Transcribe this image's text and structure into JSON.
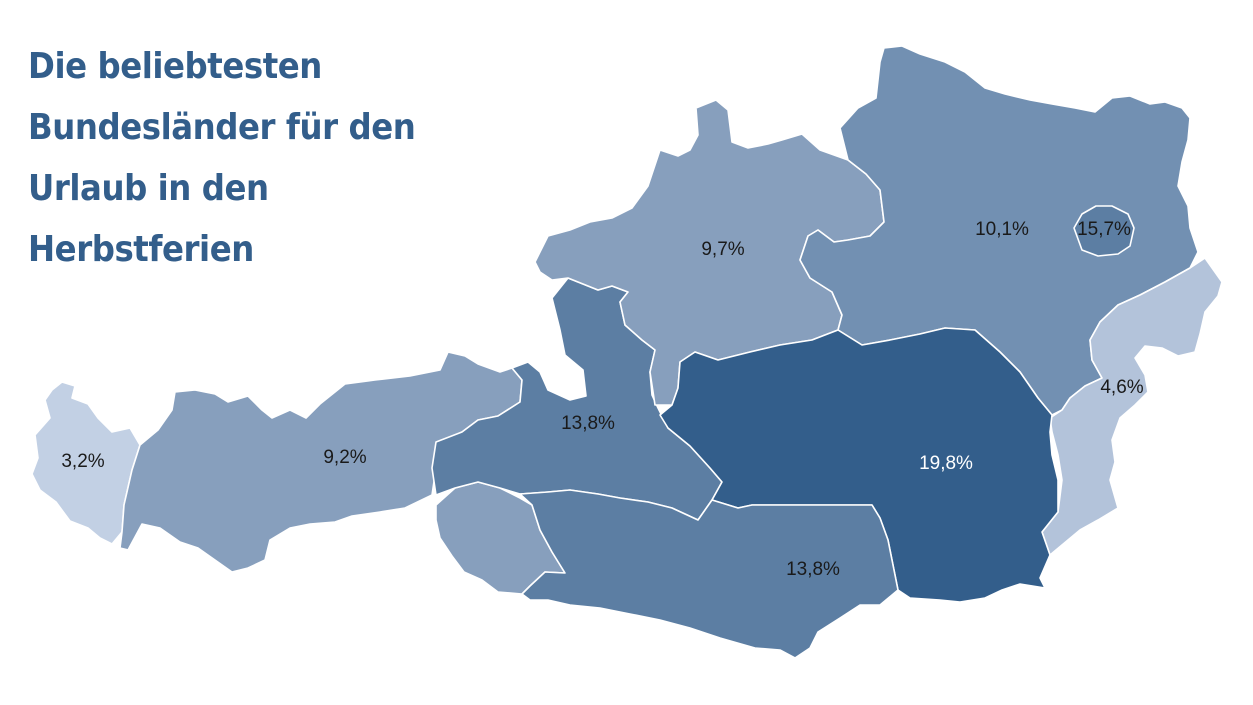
{
  "title": {
    "lines": [
      "Die beliebtesten",
      "Bundesländer für den",
      "Urlaub in den",
      "Herbstferien"
    ],
    "color": "#335e8b"
  },
  "colors": {
    "title": "#335e8b",
    "label_dark": "#1a1a1a",
    "label_light": "#ffffff",
    "region_border": "#ffffff",
    "background": "#ffffff"
  },
  "regions": [
    {
      "id": "vorarlberg",
      "value": "3,2%",
      "fill": "#c2d0e4"
    },
    {
      "id": "tirol",
      "value": "9,2%",
      "fill": "#879fbd"
    },
    {
      "id": "osttirol",
      "value": "",
      "fill": "#879fbd"
    },
    {
      "id": "salzburg",
      "value": "13,8%",
      "fill": "#5c7ea3"
    },
    {
      "id": "oberoesterreich",
      "value": "9,7%",
      "fill": "#879fbd"
    },
    {
      "id": "niederoesterreich",
      "value": "10,1%",
      "fill": "#7290b2"
    },
    {
      "id": "wien",
      "value": "15,7%",
      "fill": "#5c7ea3"
    },
    {
      "id": "burgenland",
      "value": "4,6%",
      "fill": "#b3c3da"
    },
    {
      "id": "steiermark",
      "value": "19,8%",
      "fill": "#335e8b"
    },
    {
      "id": "kaernten",
      "value": "13,8%",
      "fill": "#5c7ea3"
    }
  ]
}
